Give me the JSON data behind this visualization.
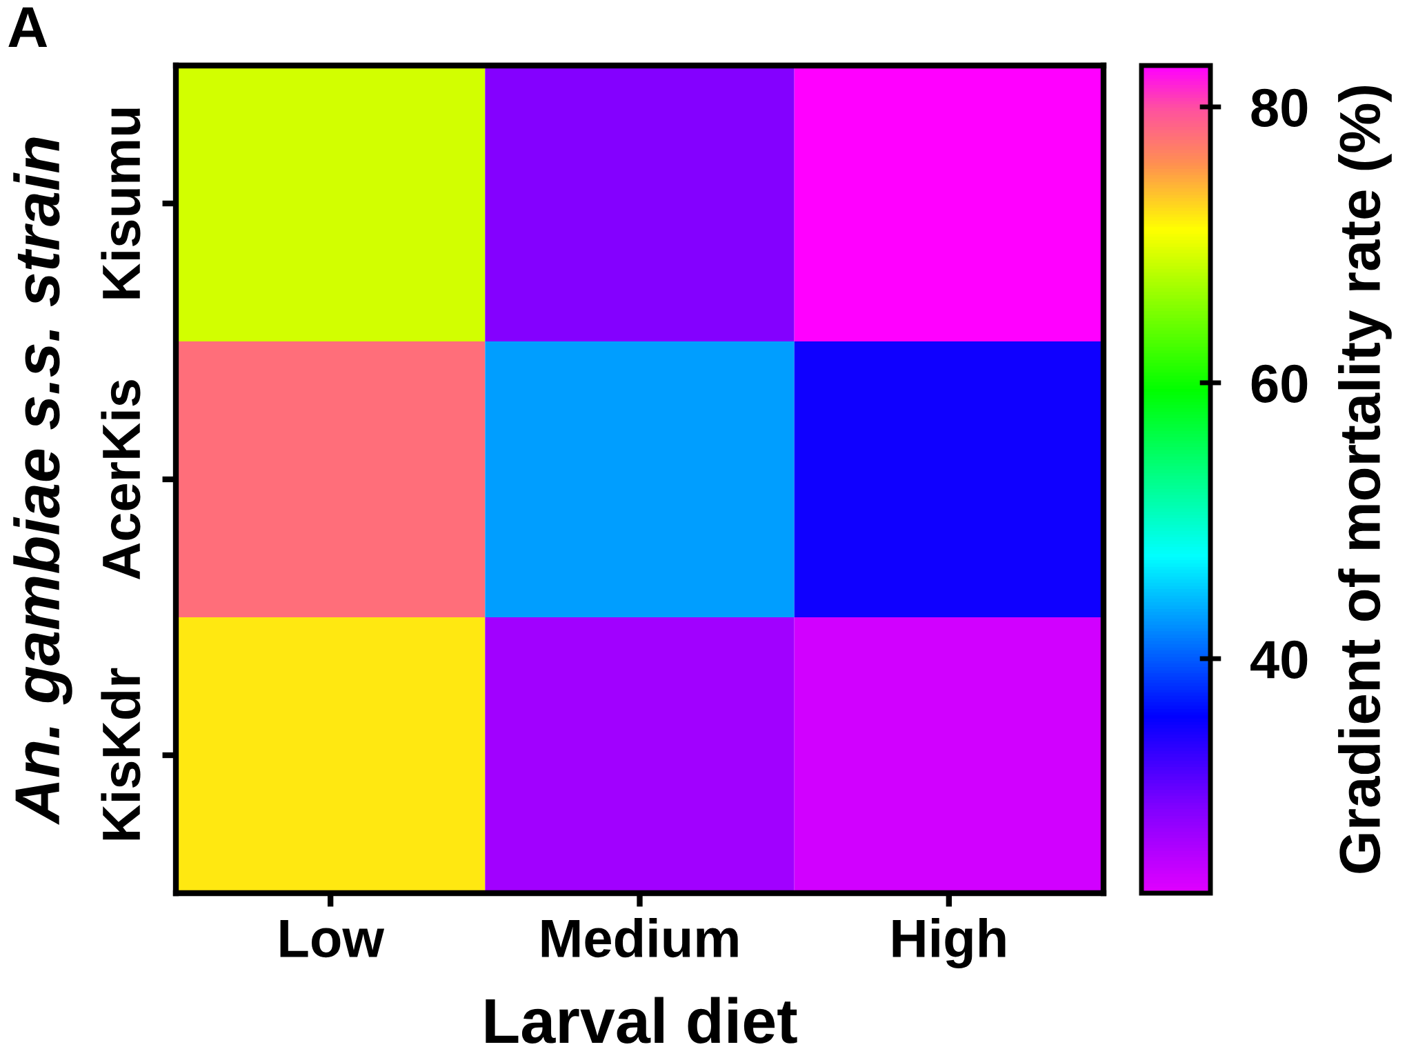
{
  "chart_data": {
    "type": "heatmap",
    "xlabel": "Larval diet",
    "ylabel": "An. gambiae s.s. strain",
    "clabel": "Gradient of mortality rate (%)",
    "categories": [
      "Low",
      "Medium",
      "High"
    ],
    "y_categories": [
      "Kisumu",
      "AcerKis",
      "KisKdr"
    ],
    "cells": [
      [
        69,
        29,
        83
      ],
      [
        78,
        43,
        35
      ],
      [
        72,
        27,
        24
      ]
    ],
    "clim": [
      23,
      83
    ],
    "cticks": [
      40,
      60,
      80
    ],
    "annotations": [
      "A"
    ]
  }
}
